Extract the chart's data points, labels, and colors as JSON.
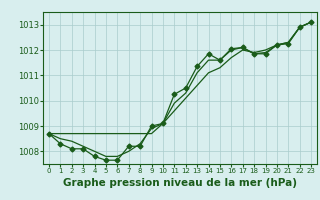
{
  "hours": [
    0,
    1,
    2,
    3,
    4,
    5,
    6,
    7,
    8,
    9,
    10,
    11,
    12,
    13,
    14,
    15,
    16,
    17,
    18,
    19,
    20,
    21,
    22,
    23
  ],
  "pressure_main": [
    1008.7,
    1008.3,
    1008.1,
    1008.1,
    1007.8,
    1007.65,
    1007.65,
    1008.2,
    1008.2,
    1009.0,
    1009.1,
    1010.25,
    1010.5,
    1011.35,
    1011.85,
    1011.6,
    1012.05,
    1012.1,
    1011.85,
    1011.85,
    1012.2,
    1012.25,
    1012.9,
    1013.1
  ],
  "pressure_trend": [
    1008.7,
    1008.7,
    1008.7,
    1008.7,
    1008.7,
    1008.7,
    1008.7,
    1008.7,
    1008.7,
    1008.7,
    1009.1,
    1009.6,
    1010.1,
    1010.6,
    1011.1,
    1011.3,
    1011.7,
    1012.0,
    1011.9,
    1012.0,
    1012.2,
    1012.3,
    1012.9,
    1013.1
  ],
  "pressure_smooth": [
    1008.7,
    1008.5,
    1008.4,
    1008.2,
    1008.0,
    1007.8,
    1007.8,
    1008.0,
    1008.3,
    1008.9,
    1009.1,
    1009.9,
    1010.3,
    1011.1,
    1011.6,
    1011.6,
    1012.0,
    1012.1,
    1011.85,
    1011.9,
    1012.2,
    1012.3,
    1012.9,
    1013.1
  ],
  "ylim": [
    1007.5,
    1013.5
  ],
  "yticks": [
    1008,
    1009,
    1010,
    1011,
    1012,
    1013
  ],
  "xlim": [
    -0.5,
    23.5
  ],
  "bg_color": "#d8eeee",
  "grid_color": "#aacccc",
  "line_color": "#1a5c1a",
  "marker": "D",
  "markersize": 2.5,
  "xlabel": "Graphe pression niveau de la mer (hPa)",
  "xlabel_fontsize": 7.5
}
